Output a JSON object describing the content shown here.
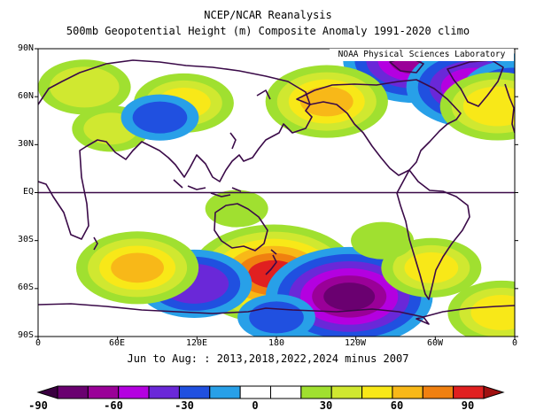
{
  "title": "NCEP/NCAR Reanalysis",
  "subtitle": "500mb Geopotential Height (m) Composite Anomaly 1991-2020 climo",
  "credit": "NOAA Physical Sciences Laboratory",
  "caption": "Jun to Aug: : 2013,2018,2022,2024 minus 2007",
  "map": {
    "projection": "equirectangular",
    "lon_range": [
      0,
      360
    ],
    "lat_range": [
      -90,
      90
    ],
    "lat_ticks": [
      "90N",
      "60N",
      "30N",
      "EQ",
      "30S",
      "60S",
      "90S"
    ],
    "lon_ticks": [
      "0",
      "60E",
      "120E",
      "180",
      "120W",
      "60W",
      "0"
    ],
    "equator_line": true
  },
  "colorbar": {
    "ticks": [
      "-90",
      "-60",
      "-30",
      "0",
      "30",
      "60",
      "90"
    ],
    "colors": [
      "#6a0070",
      "#9a0098",
      "#b400e0",
      "#6a28d8",
      "#2050e0",
      "#28a0e8",
      "#ffffff",
      "#ffffff",
      "#a0e030",
      "#d0e830",
      "#f8e818",
      "#f8b818",
      "#f08010",
      "#e02020"
    ]
  },
  "chart_data": {
    "type": "heatmap",
    "title": "500mb Geopotential Height (m) Composite Anomaly 1991-2020 climo",
    "units": "m",
    "levels": [
      -90,
      -75,
      -60,
      -45,
      -30,
      -15,
      0,
      15,
      30,
      45,
      60,
      75,
      90
    ],
    "features": [
      {
        "lon": 285,
        "lat": 83,
        "anomaly": -75
      },
      {
        "lon": 330,
        "lat": 66,
        "anomaly": -70
      },
      {
        "lon": 358,
        "lat": 64,
        "anomaly": -45
      },
      {
        "lon": 218,
        "lat": 57,
        "anomaly": 60
      },
      {
        "lon": 347,
        "lat": 54,
        "anomaly": 55
      },
      {
        "lon": 35,
        "lat": 66,
        "anomaly": 40
      },
      {
        "lon": 110,
        "lat": 56,
        "anomaly": 45
      },
      {
        "lon": 55,
        "lat": 40,
        "anomaly": 30
      },
      {
        "lon": 92,
        "lat": 47,
        "anomaly": -30
      },
      {
        "lon": 178,
        "lat": -51,
        "anomaly": 90
      },
      {
        "lon": 235,
        "lat": -65,
        "anomaly": -90
      },
      {
        "lon": 118,
        "lat": -57,
        "anomaly": -55
      },
      {
        "lon": 75,
        "lat": -47,
        "anomaly": 60
      },
      {
        "lon": 297,
        "lat": -47,
        "anomaly": 45
      },
      {
        "lon": 180,
        "lat": -78,
        "anomaly": -30
      },
      {
        "lon": 350,
        "lat": -75,
        "anomaly": 50
      },
      {
        "lon": 150,
        "lat": -10,
        "anomaly": 20
      },
      {
        "lon": 260,
        "lat": -30,
        "anomaly": 20
      }
    ]
  }
}
